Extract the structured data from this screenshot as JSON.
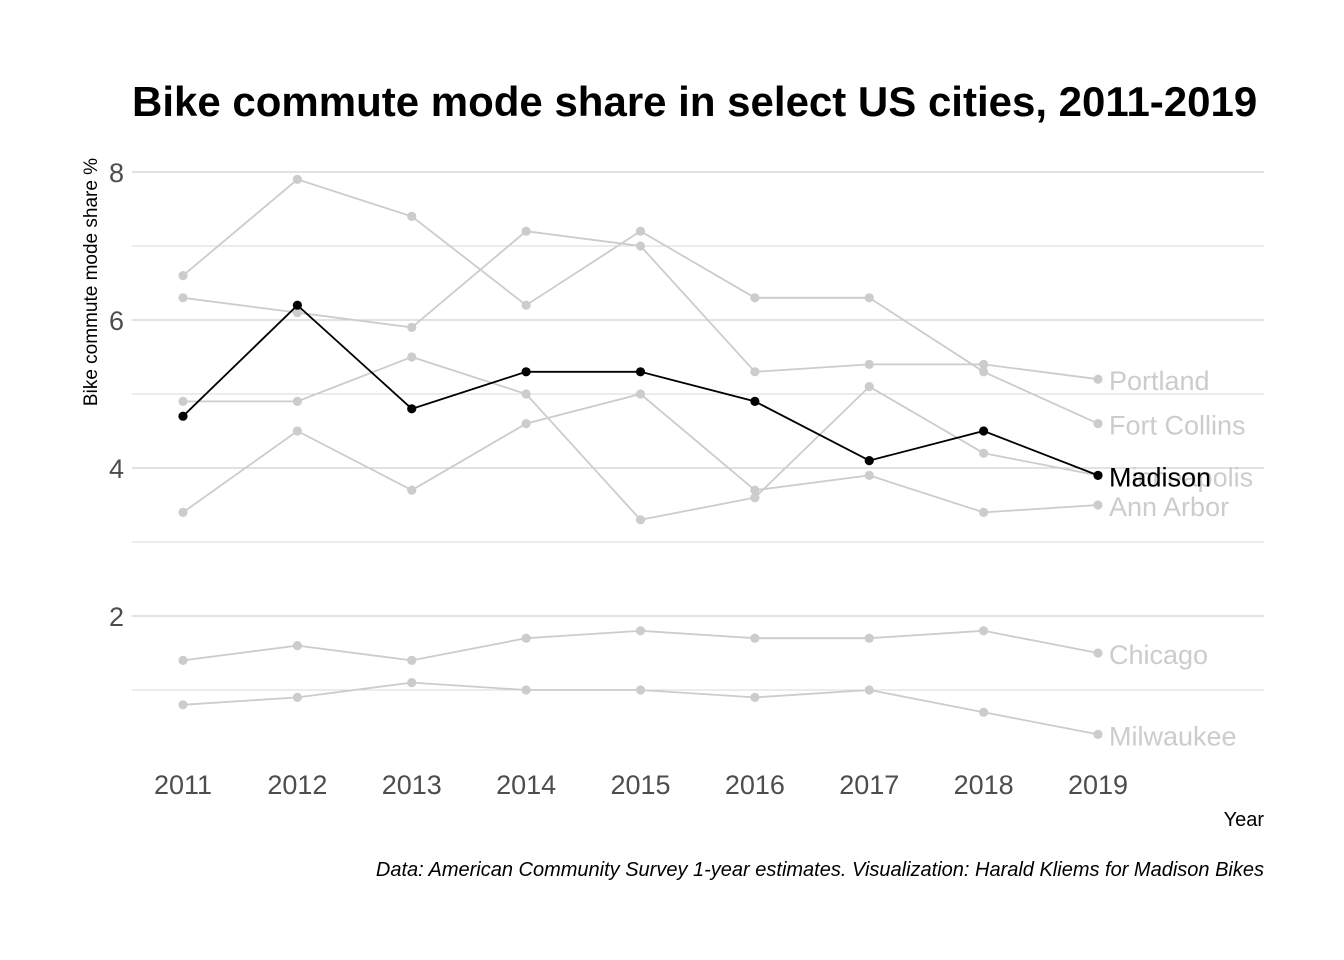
{
  "chart_data": {
    "type": "line",
    "title": "Bike commute mode share in select US cities, 2011-2019",
    "xlabel": "Year",
    "ylabel": "Bike commute mode share %",
    "caption": "Data: American Community Survey 1-year estimates. Visualization: Harald Kliems for Madison Bikes",
    "x": [
      2011,
      2012,
      2013,
      2014,
      2015,
      2016,
      2017,
      2018,
      2019
    ],
    "x_tick_labels": [
      "2011",
      "2012",
      "2013",
      "2014",
      "2015",
      "2016",
      "2017",
      "2018",
      "2019"
    ],
    "y_ticks": [
      2,
      4,
      6,
      8
    ],
    "y_tick_labels": [
      "2",
      "4",
      "6",
      "8"
    ],
    "y_minor_gridlines": [
      1,
      3,
      5,
      7
    ],
    "ylim": [
      0.15,
      8.4
    ],
    "grid": "horizontal",
    "legend": "none (series labelled at line ends)",
    "highlight_color": "#000000",
    "muted_color": "#cccccc",
    "series": [
      {
        "name": "Portland",
        "values": [
          6.3,
          6.1,
          5.9,
          7.2,
          7.0,
          5.3,
          5.4,
          5.4,
          5.2
        ],
        "highlight": false
      },
      {
        "name": "Fort Collins",
        "values": [
          6.6,
          7.9,
          7.4,
          6.2,
          7.2,
          6.3,
          6.3,
          5.3,
          4.6
        ],
        "highlight": false
      },
      {
        "name": "Minneapolis",
        "values": [
          4.9,
          4.9,
          5.5,
          5.0,
          3.3,
          3.6,
          5.1,
          4.2,
          3.9
        ],
        "highlight": false
      },
      {
        "name": "Ann Arbor",
        "values": [
          3.4,
          4.5,
          3.7,
          4.6,
          5.0,
          3.7,
          3.9,
          3.4,
          3.5
        ],
        "highlight": false
      },
      {
        "name": "Chicago",
        "values": [
          1.4,
          1.6,
          1.4,
          1.7,
          1.8,
          1.7,
          1.7,
          1.8,
          1.5
        ],
        "highlight": false
      },
      {
        "name": "Milwaukee",
        "values": [
          0.8,
          0.9,
          1.1,
          1.0,
          1.0,
          0.9,
          1.0,
          0.7,
          0.4
        ],
        "highlight": false
      },
      {
        "name": "Madison",
        "values": [
          4.7,
          6.2,
          4.8,
          5.3,
          5.3,
          4.9,
          4.1,
          4.5,
          3.9
        ],
        "highlight": true
      }
    ]
  }
}
